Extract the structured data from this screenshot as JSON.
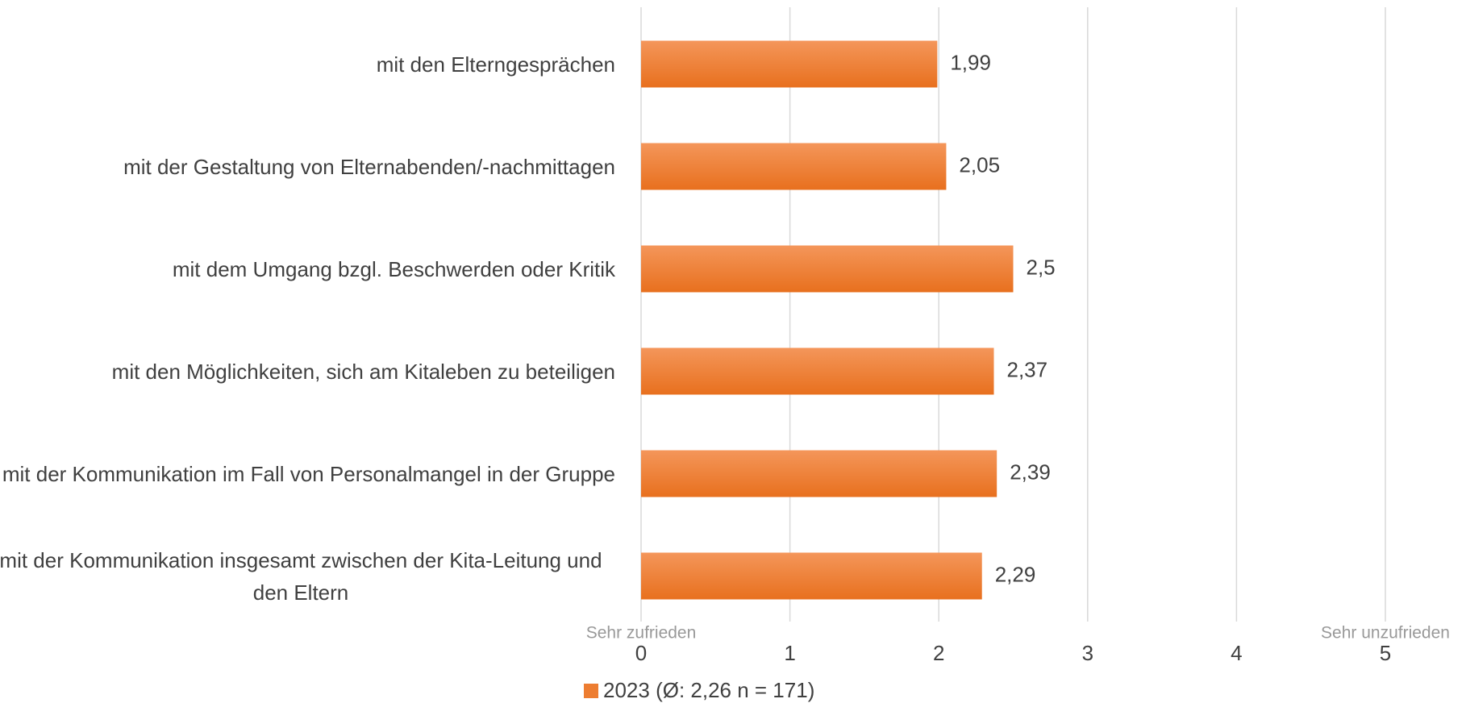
{
  "chart_data": {
    "type": "bar",
    "orientation": "horizontal",
    "categories": [
      "mit den Elterngesprächen",
      "mit der Gestaltung von Elternabenden/-nachmittagen",
      "mit dem Umgang bzgl. Beschwerden oder Kritik",
      "mit den Möglichkeiten, sich am Kitaleben zu beteiligen",
      "mit der Kommunikation im Fall von Personalmangel in der Gruppe",
      "mit der Kommunikation insgesamt zwischen der Kita-Leitung und den Eltern"
    ],
    "series": [
      {
        "name": "2023 (Ø: 2,26 n = 171)",
        "color": "#ed7d31",
        "values": [
          1.99,
          2.05,
          2.5,
          2.37,
          2.39,
          2.29
        ],
        "value_labels": [
          "1,99",
          "2,05",
          "2,5",
          "2,37",
          "2,39",
          "2,29"
        ]
      }
    ],
    "xlim": [
      0,
      5
    ],
    "xticks": [
      0,
      1,
      2,
      3,
      4,
      5
    ],
    "grid": true,
    "annotations": [
      "Sehr zufrieden",
      "Sehr unzufrieden"
    ],
    "legend": "bottom"
  }
}
